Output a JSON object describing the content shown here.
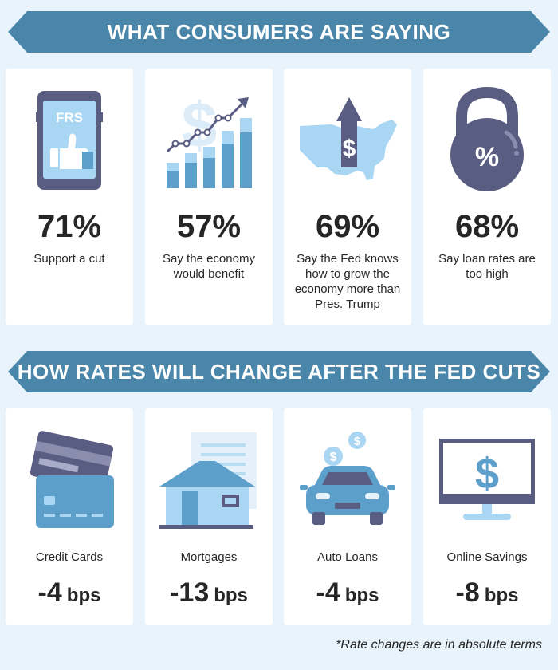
{
  "banners": {
    "top": "WHAT CONSUMERS ARE SAYING",
    "bottom": "HOW RATES WILL CHANGE AFTER THE FED CUTS"
  },
  "survey": [
    {
      "icon": "phone-thumbs-up-icon",
      "icon_text": "FRS",
      "percent": "71%",
      "desc": "Support a cut"
    },
    {
      "icon": "growth-chart-icon",
      "percent": "57%",
      "desc": "Say the economy would benefit"
    },
    {
      "icon": "us-map-dollar-arrow-icon",
      "percent": "69%",
      "desc": "Say the Fed knows how to grow the economy more than Pres. Trump"
    },
    {
      "icon": "percent-kettlebell-icon",
      "percent": "68%",
      "desc": "Say loan rates are too high"
    }
  ],
  "rates": [
    {
      "icon": "credit-cards-icon",
      "label": "Credit Cards",
      "value": "-4",
      "unit": "bps"
    },
    {
      "icon": "house-document-icon",
      "label": "Mortgages",
      "value": "-13",
      "unit": "bps"
    },
    {
      "icon": "car-coins-icon",
      "label": "Auto Loans",
      "value": "-4",
      "unit": "bps"
    },
    {
      "icon": "monitor-dollar-icon",
      "label": "Online Savings",
      "value": "-8",
      "unit": "bps"
    }
  ],
  "footnote": "*Rate changes are in absolute terms",
  "colors": {
    "background": "#e9f3fb",
    "banner": "#4a85aa",
    "dark_purple": "#5a5d82",
    "light_blue": "#a9d7f3",
    "mid_blue": "#5d9fcb",
    "text": "#262626"
  }
}
